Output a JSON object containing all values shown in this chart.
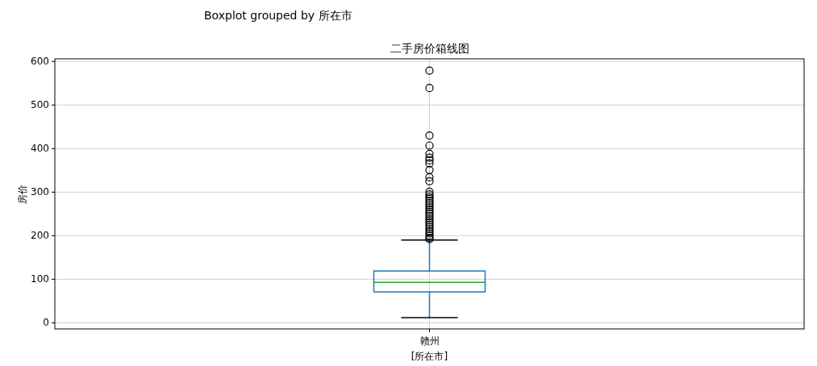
{
  "chart_data": {
    "type": "box",
    "title": "Boxplot grouped by 所在市",
    "subtitle": "二手房价箱线图",
    "xlabel": "[所在市]",
    "ylabel": "房价",
    "categories": [
      "赣州"
    ],
    "boxes": [
      {
        "low": 12,
        "q1": 71,
        "median": 93,
        "q3": 119,
        "high": 190,
        "outliers": [
          579,
          539,
          430,
          407,
          388,
          379,
          373,
          366,
          351,
          334,
          325,
          301,
          295,
          290,
          285,
          280,
          275,
          270,
          265,
          260,
          255,
          250,
          245,
          240,
          235,
          230,
          225,
          220,
          215,
          210,
          205,
          200,
          195,
          192
        ]
      }
    ],
    "ylim": [
      -14,
      606
    ],
    "yticks": [
      0,
      100,
      200,
      300,
      400,
      500,
      600
    ],
    "grid": true
  }
}
